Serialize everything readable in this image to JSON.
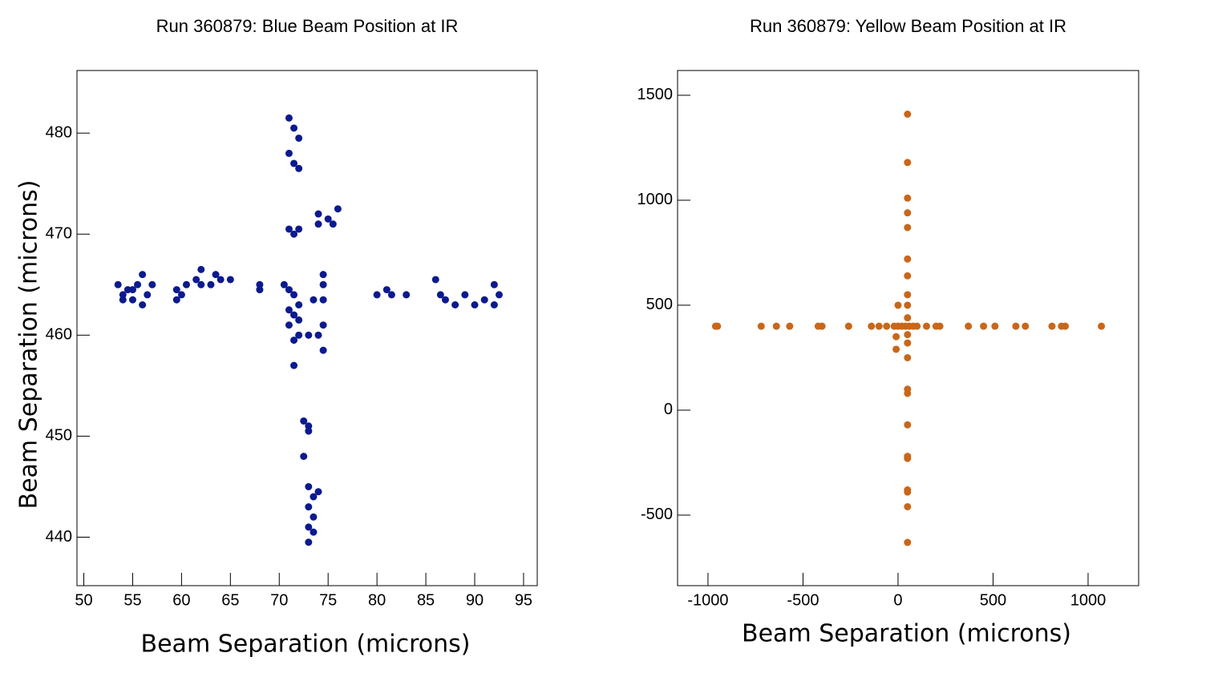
{
  "chart_data": [
    {
      "type": "scatter",
      "title": "Run 360879: Blue Beam Position at IR",
      "x_label": "Beam Separation (microns)",
      "y_label": "Beam Separation (microns)",
      "color": "#0b1a8e",
      "xlim": [
        49.3,
        96.4
      ],
      "ylim": [
        435.2,
        486.2
      ],
      "xticks": [
        50,
        55,
        60,
        65,
        70,
        75,
        80,
        85,
        90,
        95
      ],
      "yticks": [
        440,
        450,
        460,
        470,
        480
      ],
      "x": [
        53.5,
        54,
        54.5,
        55,
        55.5,
        56,
        56.5,
        57,
        55,
        54,
        56,
        59.5,
        60,
        60.5,
        59.5,
        61.5,
        62,
        62,
        63,
        63.5,
        64,
        65,
        68,
        68,
        70.5,
        71,
        71.5,
        72,
        74.5,
        74.5,
        80,
        81,
        81.5,
        83,
        86,
        86.5,
        87,
        88,
        89,
        90,
        91,
        92,
        92,
        92.5,
        71,
        71.5,
        72,
        71,
        71.5,
        72,
        71,
        72,
        71.5,
        71,
        72,
        73,
        74,
        71.5,
        72,
        74.5,
        74.5,
        71.5,
        72.5,
        73,
        73,
        72.5,
        73,
        73.5,
        74,
        73,
        73.5,
        73,
        73.5,
        73,
        74,
        75,
        76,
        75.5,
        74,
        73.5,
        74.5,
        71,
        71.5
      ],
      "values": [
        465,
        464,
        464.5,
        463.5,
        465,
        466,
        464,
        465,
        464.5,
        463.5,
        463,
        464.5,
        464,
        465,
        463.5,
        465.5,
        465,
        466.5,
        465,
        466,
        465.5,
        465.5,
        464.5,
        465,
        465,
        464.5,
        464,
        463,
        465,
        466,
        464,
        464.5,
        464,
        464,
        465.5,
        464,
        463.5,
        463,
        464,
        463,
        463.5,
        465,
        463,
        464,
        481.5,
        480.5,
        479.5,
        478,
        477,
        476.5,
        470.5,
        470.5,
        470,
        461,
        460,
        460,
        460,
        459.5,
        461.5,
        461,
        458.5,
        457,
        451.5,
        451,
        450.5,
        448,
        445,
        444,
        444.5,
        443,
        442,
        441,
        440.5,
        439.5,
        472,
        471.5,
        472.5,
        471,
        471,
        463.5,
        463.5,
        462.5,
        462
      ]
    },
    {
      "type": "scatter",
      "title": "Run 360879: Yellow Beam Position at IR",
      "x_label": "Beam Separation (microns)",
      "color": "#c8671a",
      "xlim": [
        -1160,
        1266
      ],
      "ylim": [
        -836,
        1618
      ],
      "xticks": [
        -1000,
        -500,
        0,
        500,
        1000
      ],
      "yticks": [
        -500,
        0,
        500,
        1000,
        1500
      ],
      "x": [
        -960,
        -950,
        -720,
        -640,
        -570,
        -420,
        -400,
        -260,
        -140,
        -100,
        -60,
        -20,
        0,
        20,
        40,
        60,
        80,
        100,
        150,
        200,
        220,
        370,
        450,
        510,
        620,
        670,
        810,
        860,
        880,
        1070,
        50,
        50,
        50,
        50,
        50,
        50,
        50,
        50,
        50,
        50,
        50,
        50,
        50,
        50,
        50,
        50,
        50,
        50,
        50,
        50,
        50,
        50,
        0,
        -10,
        -10
      ],
      "values": [
        400,
        400,
        400,
        400,
        400,
        400,
        400,
        400,
        400,
        400,
        400,
        400,
        400,
        400,
        400,
        400,
        400,
        400,
        400,
        400,
        400,
        400,
        400,
        400,
        400,
        400,
        400,
        400,
        400,
        400,
        1410,
        1180,
        1010,
        940,
        870,
        720,
        640,
        550,
        500,
        440,
        360,
        320,
        250,
        100,
        80,
        -70,
        -220,
        -230,
        -380,
        -390,
        -460,
        -630,
        500,
        290,
        350
      ]
    }
  ]
}
